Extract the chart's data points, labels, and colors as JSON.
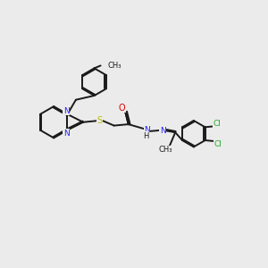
{
  "bg_color": "#ebebeb",
  "bond_color": "#1a1a1a",
  "N_color": "#2020ff",
  "O_color": "#dd0000",
  "S_color": "#bbbb00",
  "Cl_color": "#22aa22",
  "lw": 1.4,
  "dbo": 0.022,
  "fs": 6.5,
  "xlim": [
    0,
    10
  ],
  "ylim": [
    0,
    10
  ]
}
